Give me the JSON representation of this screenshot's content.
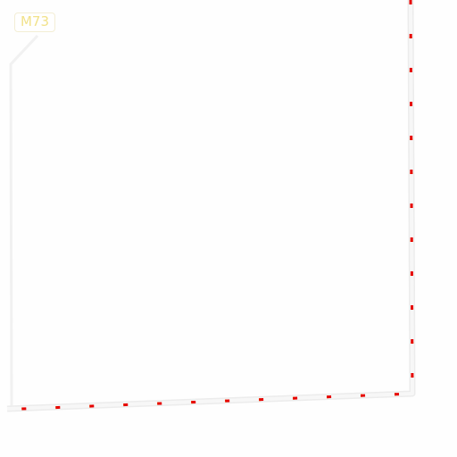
{
  "map": {
    "route_label": "M73",
    "colors": {
      "background": "#fefefe",
      "road_casing": "#eeeeee",
      "road_fill": "#f6f6f6",
      "minor_road": "#f1f1f1",
      "boundary_dash_red": "#e60000",
      "boundary_dash_yellow": "#ffd000",
      "shield_text": "#f2e28a",
      "shield_border": "#f3eed5"
    }
  }
}
